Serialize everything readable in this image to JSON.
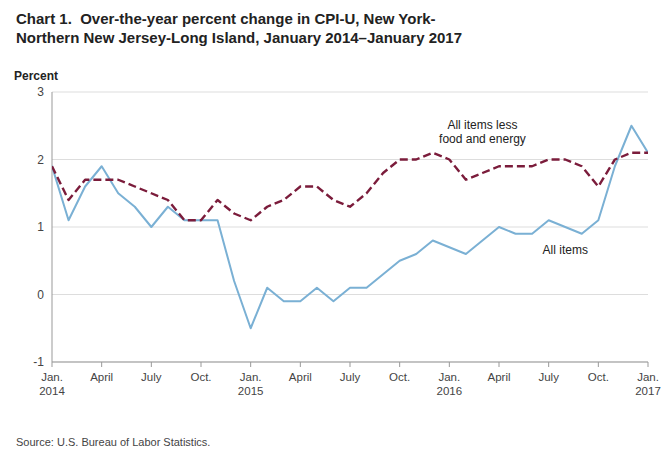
{
  "chart_data": {
    "type": "line",
    "title": "Chart 1.  Over-the-year percent change in CPI-U, New York-\nNorthern New Jersey-Long Island, January 2014–January 2017",
    "y_label": "Percent",
    "source": "Source: U.S. Bureau of Labor Statistics.",
    "categories": [
      "Jan.\n2014",
      null,
      null,
      "April",
      null,
      null,
      "July",
      null,
      null,
      "Oct.",
      null,
      null,
      "Jan.\n2015",
      null,
      null,
      "April",
      null,
      null,
      "July",
      null,
      null,
      "Oct.",
      null,
      null,
      "Jan.\n2016",
      null,
      null,
      "April",
      null,
      null,
      "July",
      null,
      null,
      "Oct.",
      null,
      null,
      "Jan.\n2017"
    ],
    "series": [
      {
        "name": "All items",
        "color": "#7ab0d4",
        "line_style": "solid",
        "values": [
          1.9,
          1.1,
          1.6,
          1.9,
          1.5,
          1.3,
          1.0,
          1.3,
          1.1,
          1.1,
          1.1,
          0.2,
          -0.5,
          0.1,
          -0.1,
          -0.1,
          0.1,
          -0.1,
          0.1,
          0.1,
          0.3,
          0.5,
          0.6,
          0.8,
          0.7,
          0.6,
          0.8,
          1.0,
          0.9,
          0.9,
          1.1,
          1.0,
          0.9,
          1.1,
          1.9,
          2.5,
          2.1
        ]
      },
      {
        "name": "All items less\nfood and energy",
        "color": "#7b1c3b",
        "line_style": "dashed",
        "values": [
          1.9,
          1.4,
          1.7,
          1.7,
          1.7,
          1.6,
          1.5,
          1.4,
          1.1,
          1.1,
          1.4,
          1.2,
          1.1,
          1.3,
          1.4,
          1.6,
          1.6,
          1.4,
          1.3,
          1.5,
          1.8,
          2.0,
          2.0,
          2.1,
          2.0,
          1.7,
          1.8,
          1.9,
          1.9,
          1.9,
          2.0,
          2.0,
          1.9,
          1.6,
          2.0,
          2.1,
          2.1
        ]
      }
    ],
    "ylim": [
      -1,
      3
    ],
    "yticks": [
      -1,
      0,
      1,
      2,
      3
    ],
    "grid": true
  }
}
